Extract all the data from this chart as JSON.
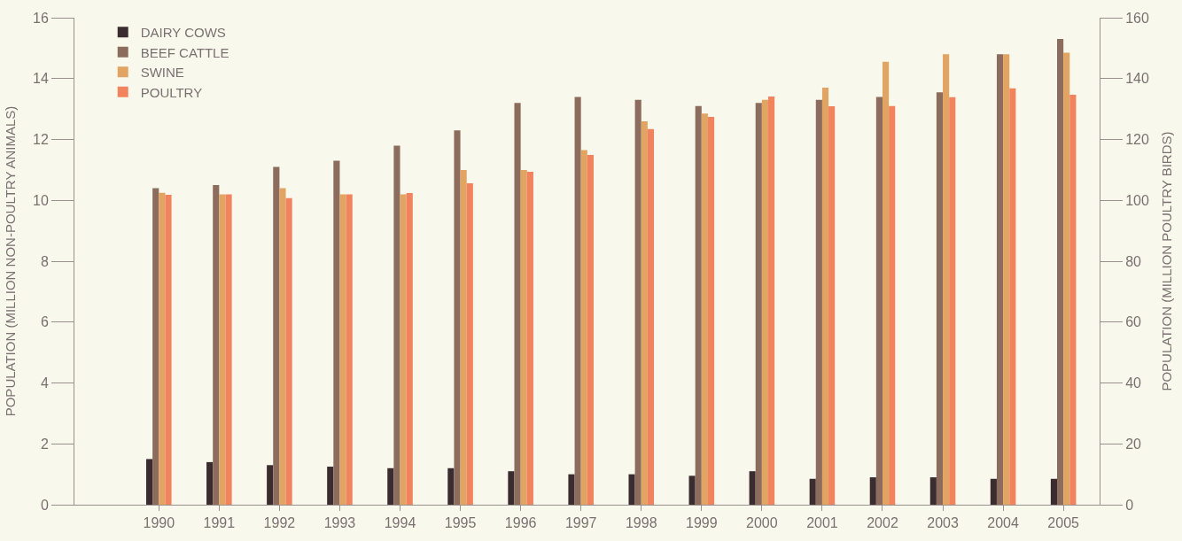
{
  "chart_data": {
    "type": "bar",
    "ylabel": "POPULATION (MILLION NON-POULTRY ANIMALS)",
    "y2label": "POPULATION (MILLION POULTRY BIRDS)",
    "categories": [
      "1990",
      "1991",
      "1992",
      "1993",
      "1994",
      "1995",
      "1996",
      "1997",
      "1998",
      "1999",
      "2000",
      "2001",
      "2002",
      "2003",
      "2004",
      "2005"
    ],
    "series": [
      {
        "name": "DAIRY COWS",
        "color": "#3b2c30",
        "values": [
          1.5,
          1.4,
          1.3,
          1.25,
          1.2,
          1.2,
          1.1,
          1.0,
          1.0,
          0.95,
          1.1,
          0.85,
          0.9,
          0.9,
          0.85,
          0.85
        ]
      },
      {
        "name": "BEEF CATTLE",
        "color": "#8c6c5c",
        "values": [
          10.4,
          10.5,
          11.1,
          11.3,
          11.8,
          12.3,
          13.2,
          13.4,
          13.3,
          13.1,
          13.2,
          13.3,
          13.4,
          13.55,
          14.8,
          15.3
        ]
      },
      {
        "name": "SWINE",
        "color": "#e2a462",
        "values": [
          10.25,
          10.2,
          10.4,
          10.2,
          10.2,
          11.0,
          11.0,
          11.65,
          12.6,
          12.85,
          13.3,
          13.7,
          14.55,
          14.8,
          14.8,
          14.85
        ]
      },
      {
        "name": "POULTRY",
        "color": "#f2835f",
        "axis": "y2",
        "values": [
          101.8,
          102,
          100.7,
          102,
          102.4,
          105.6,
          109.4,
          114.9,
          123.4,
          127.4,
          134.1,
          130.9,
          131,
          133.9,
          136.8,
          134.7
        ]
      }
    ],
    "ylim": [
      0,
      16
    ],
    "yticks": [
      0,
      2,
      4,
      6,
      8,
      10,
      12,
      14,
      16
    ],
    "y2lim": [
      0,
      160
    ],
    "y2ticks": [
      0,
      20,
      40,
      60,
      80,
      100,
      120,
      140,
      160
    ],
    "grid": false,
    "legend": "top left"
  }
}
